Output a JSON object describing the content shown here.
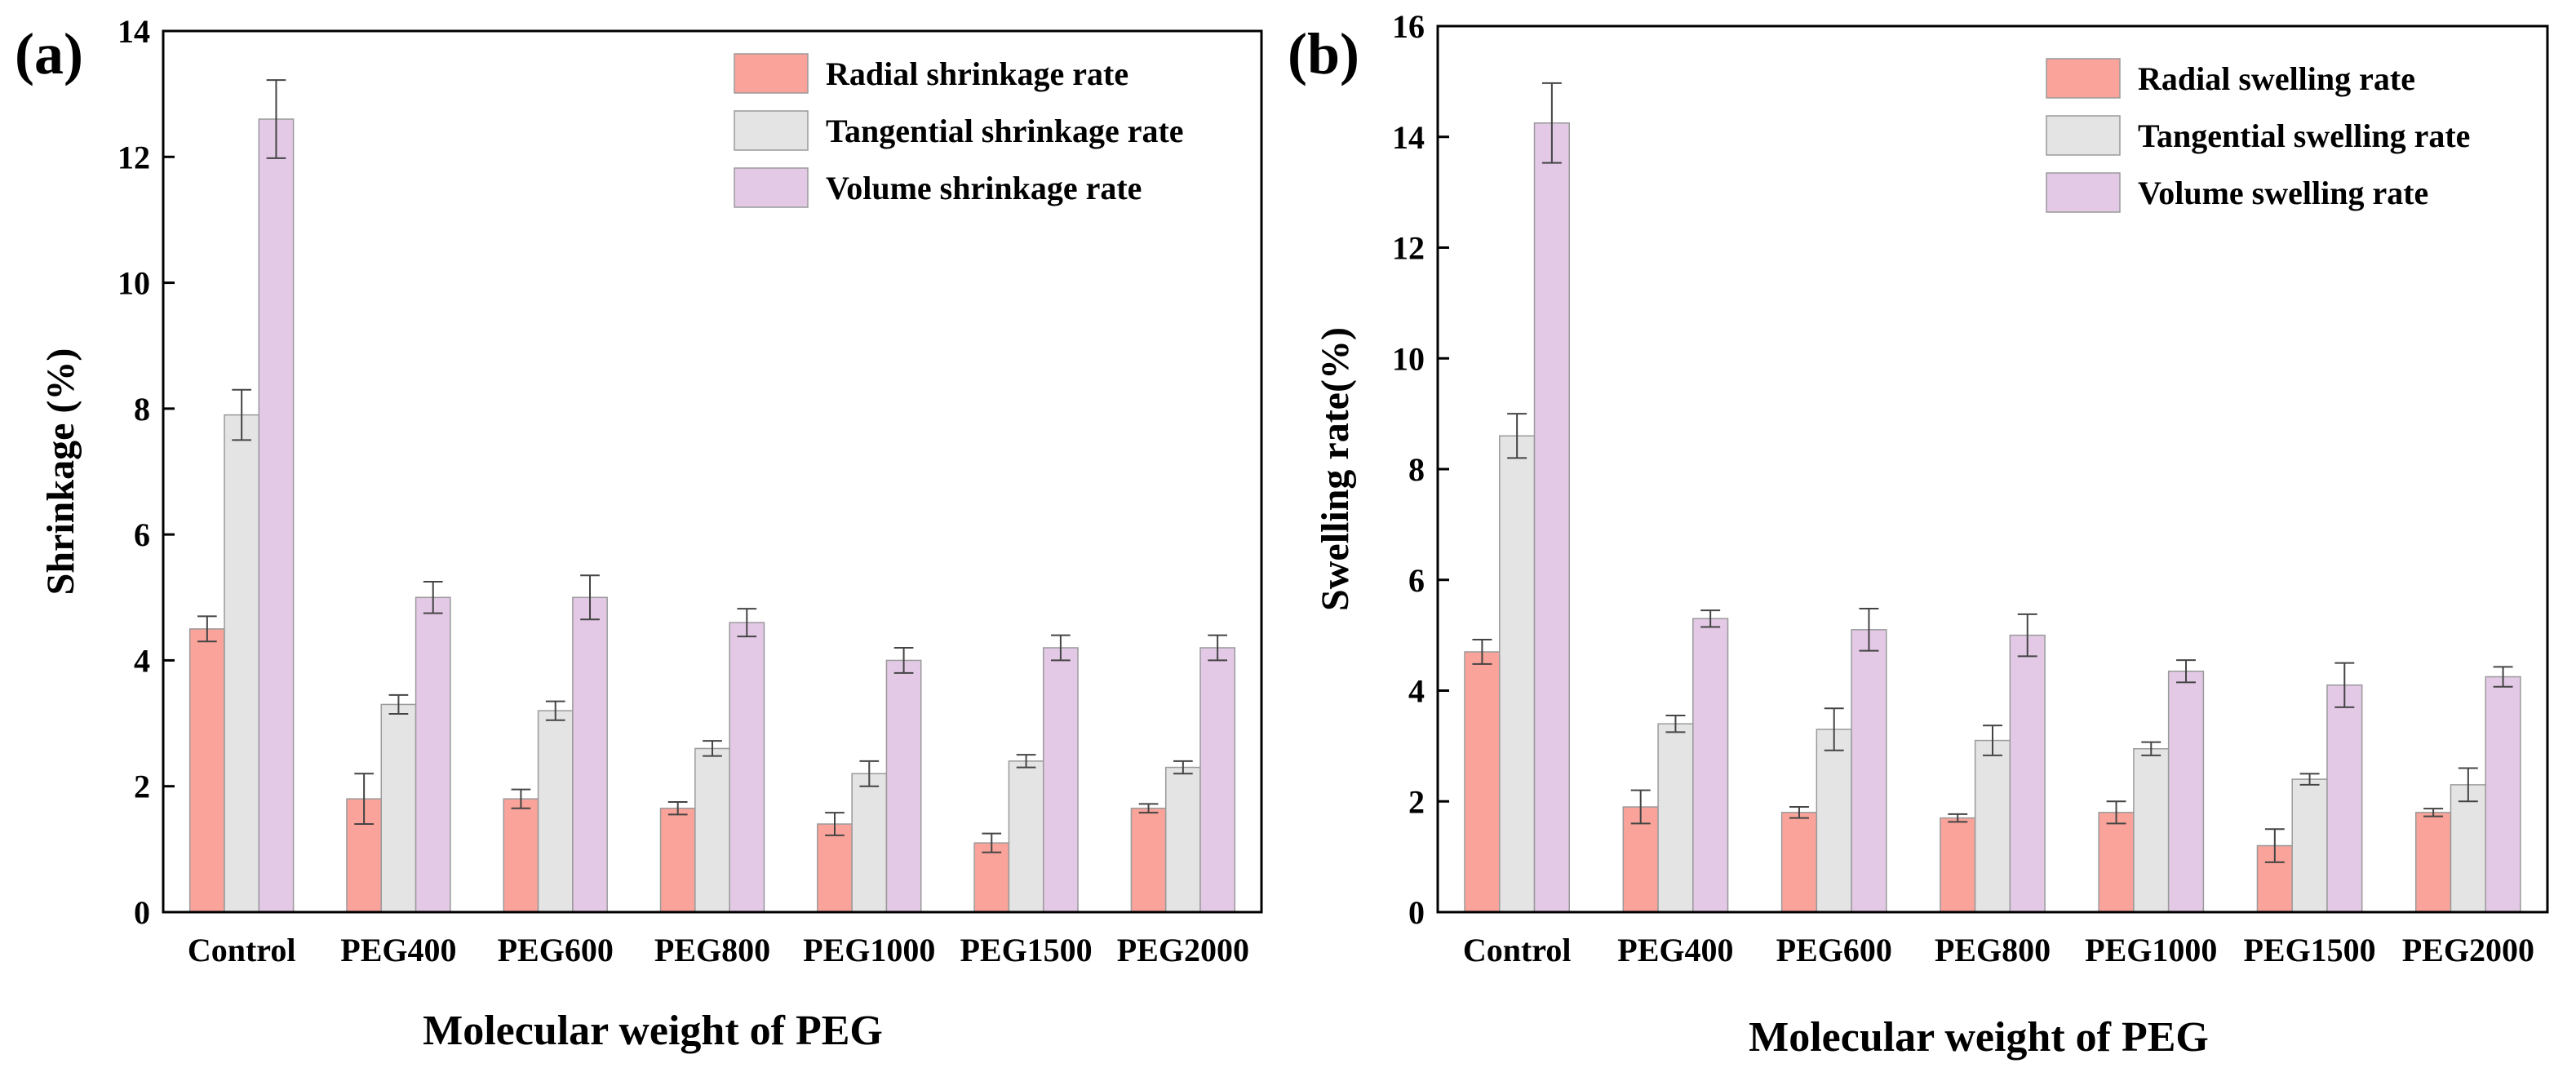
{
  "chart_data": [
    {
      "type": "bar",
      "panel": "(a)",
      "title": "",
      "xlabel": "Molecular weight of PEG",
      "ylabel": "Shrinkage (%)",
      "ylim": [
        0,
        14
      ],
      "yticks": [
        0,
        2,
        4,
        6,
        8,
        10,
        12,
        14
      ],
      "categories": [
        "Control",
        "PEG400",
        "PEG600",
        "PEG800",
        "PEG1000",
        "PEG1500",
        "PEG2000"
      ],
      "legend_position": "top-right",
      "series": [
        {
          "name": "Radial shrinkage rate",
          "color": "#f9a39a",
          "values": [
            4.5,
            1.8,
            1.8,
            1.65,
            1.4,
            1.1,
            1.65
          ],
          "errors": [
            0.2,
            0.4,
            0.15,
            0.1,
            0.18,
            0.15,
            0.07
          ]
        },
        {
          "name": "Tangential shrinkage rate",
          "color": "#e4e4e4",
          "values": [
            7.9,
            3.3,
            3.2,
            2.6,
            2.2,
            2.4,
            2.3
          ],
          "errors": [
            0.4,
            0.15,
            0.15,
            0.12,
            0.2,
            0.1,
            0.1
          ]
        },
        {
          "name": "Volume shrinkage rate",
          "color": "#e3c9e6",
          "values": [
            12.6,
            5.0,
            5.0,
            4.6,
            4.0,
            4.2,
            4.2
          ],
          "errors": [
            0.62,
            0.25,
            0.35,
            0.22,
            0.2,
            0.2,
            0.2
          ]
        }
      ]
    },
    {
      "type": "bar",
      "panel": "(b)",
      "title": "",
      "xlabel": "Molecular weight of PEG",
      "ylabel": "Swelling rate(%)",
      "ylim": [
        0,
        16
      ],
      "yticks": [
        0,
        2,
        4,
        6,
        8,
        10,
        12,
        14,
        16
      ],
      "categories": [
        "Control",
        "PEG400",
        "PEG600",
        "PEG800",
        "PEG1000",
        "PEG1500",
        "PEG2000"
      ],
      "legend_position": "top-right",
      "series": [
        {
          "name": "Radial swelling rate",
          "color": "#f9a39a",
          "values": [
            4.7,
            1.9,
            1.8,
            1.7,
            1.8,
            1.2,
            1.8
          ],
          "errors": [
            0.22,
            0.3,
            0.1,
            0.07,
            0.2,
            0.3,
            0.07
          ]
        },
        {
          "name": "Tangential swelling rate",
          "color": "#e4e4e4",
          "values": [
            8.6,
            3.4,
            3.3,
            3.1,
            2.95,
            2.4,
            2.3
          ],
          "errors": [
            0.4,
            0.15,
            0.38,
            0.27,
            0.12,
            0.1,
            0.3
          ]
        },
        {
          "name": "Volume swelling rate",
          "color": "#e3c9e6",
          "values": [
            14.25,
            5.3,
            5.1,
            5.0,
            4.35,
            4.1,
            4.25
          ],
          "errors": [
            0.72,
            0.15,
            0.38,
            0.38,
            0.2,
            0.4,
            0.18
          ]
        }
      ]
    }
  ]
}
